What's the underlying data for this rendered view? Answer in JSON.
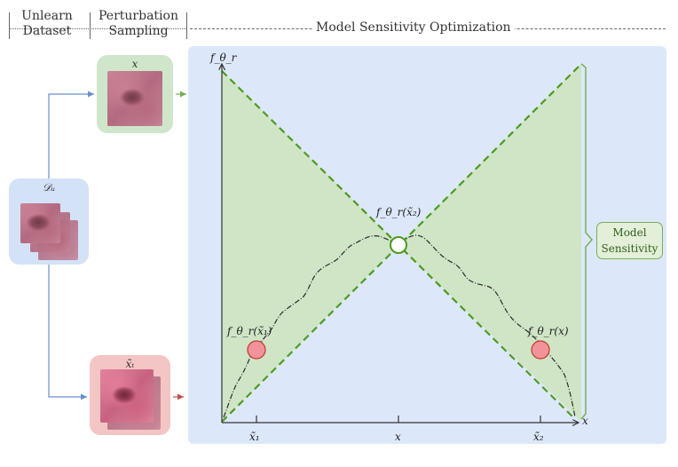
{
  "headers": {
    "unlearn_line1": "Unlearn",
    "unlearn_line2": "Dataset",
    "perturb_line1": "Perturbation",
    "perturb_line2": "Sampling",
    "optimization": "Model Sensitivity Optimization"
  },
  "inputs": {
    "x_label": "x",
    "dataset_label": "𝒟ᵤ",
    "xt_label": "x̃ₜ"
  },
  "plot": {
    "y_axis_label": "f_θ_r",
    "x_axis_label": "x",
    "ticks": [
      "x̃₁",
      "x",
      "x̃₂"
    ],
    "center_point": "f_θ_r(x̃₂)",
    "left_point": "f_θ_r(x̃₁)",
    "right_point": "f_θ_r(x)"
  },
  "sensitivity_label_line1": "Model",
  "sensitivity_label_line2": "Sensitivity",
  "colors": {
    "panel_bg": "#dce8fa",
    "cone_fill": "#cfe5c6",
    "dashed_green": "#4e9a1f",
    "marker_red": "#f2939b",
    "arrow_blue": "#6a8fc9",
    "arrow_red": "#c05050"
  }
}
